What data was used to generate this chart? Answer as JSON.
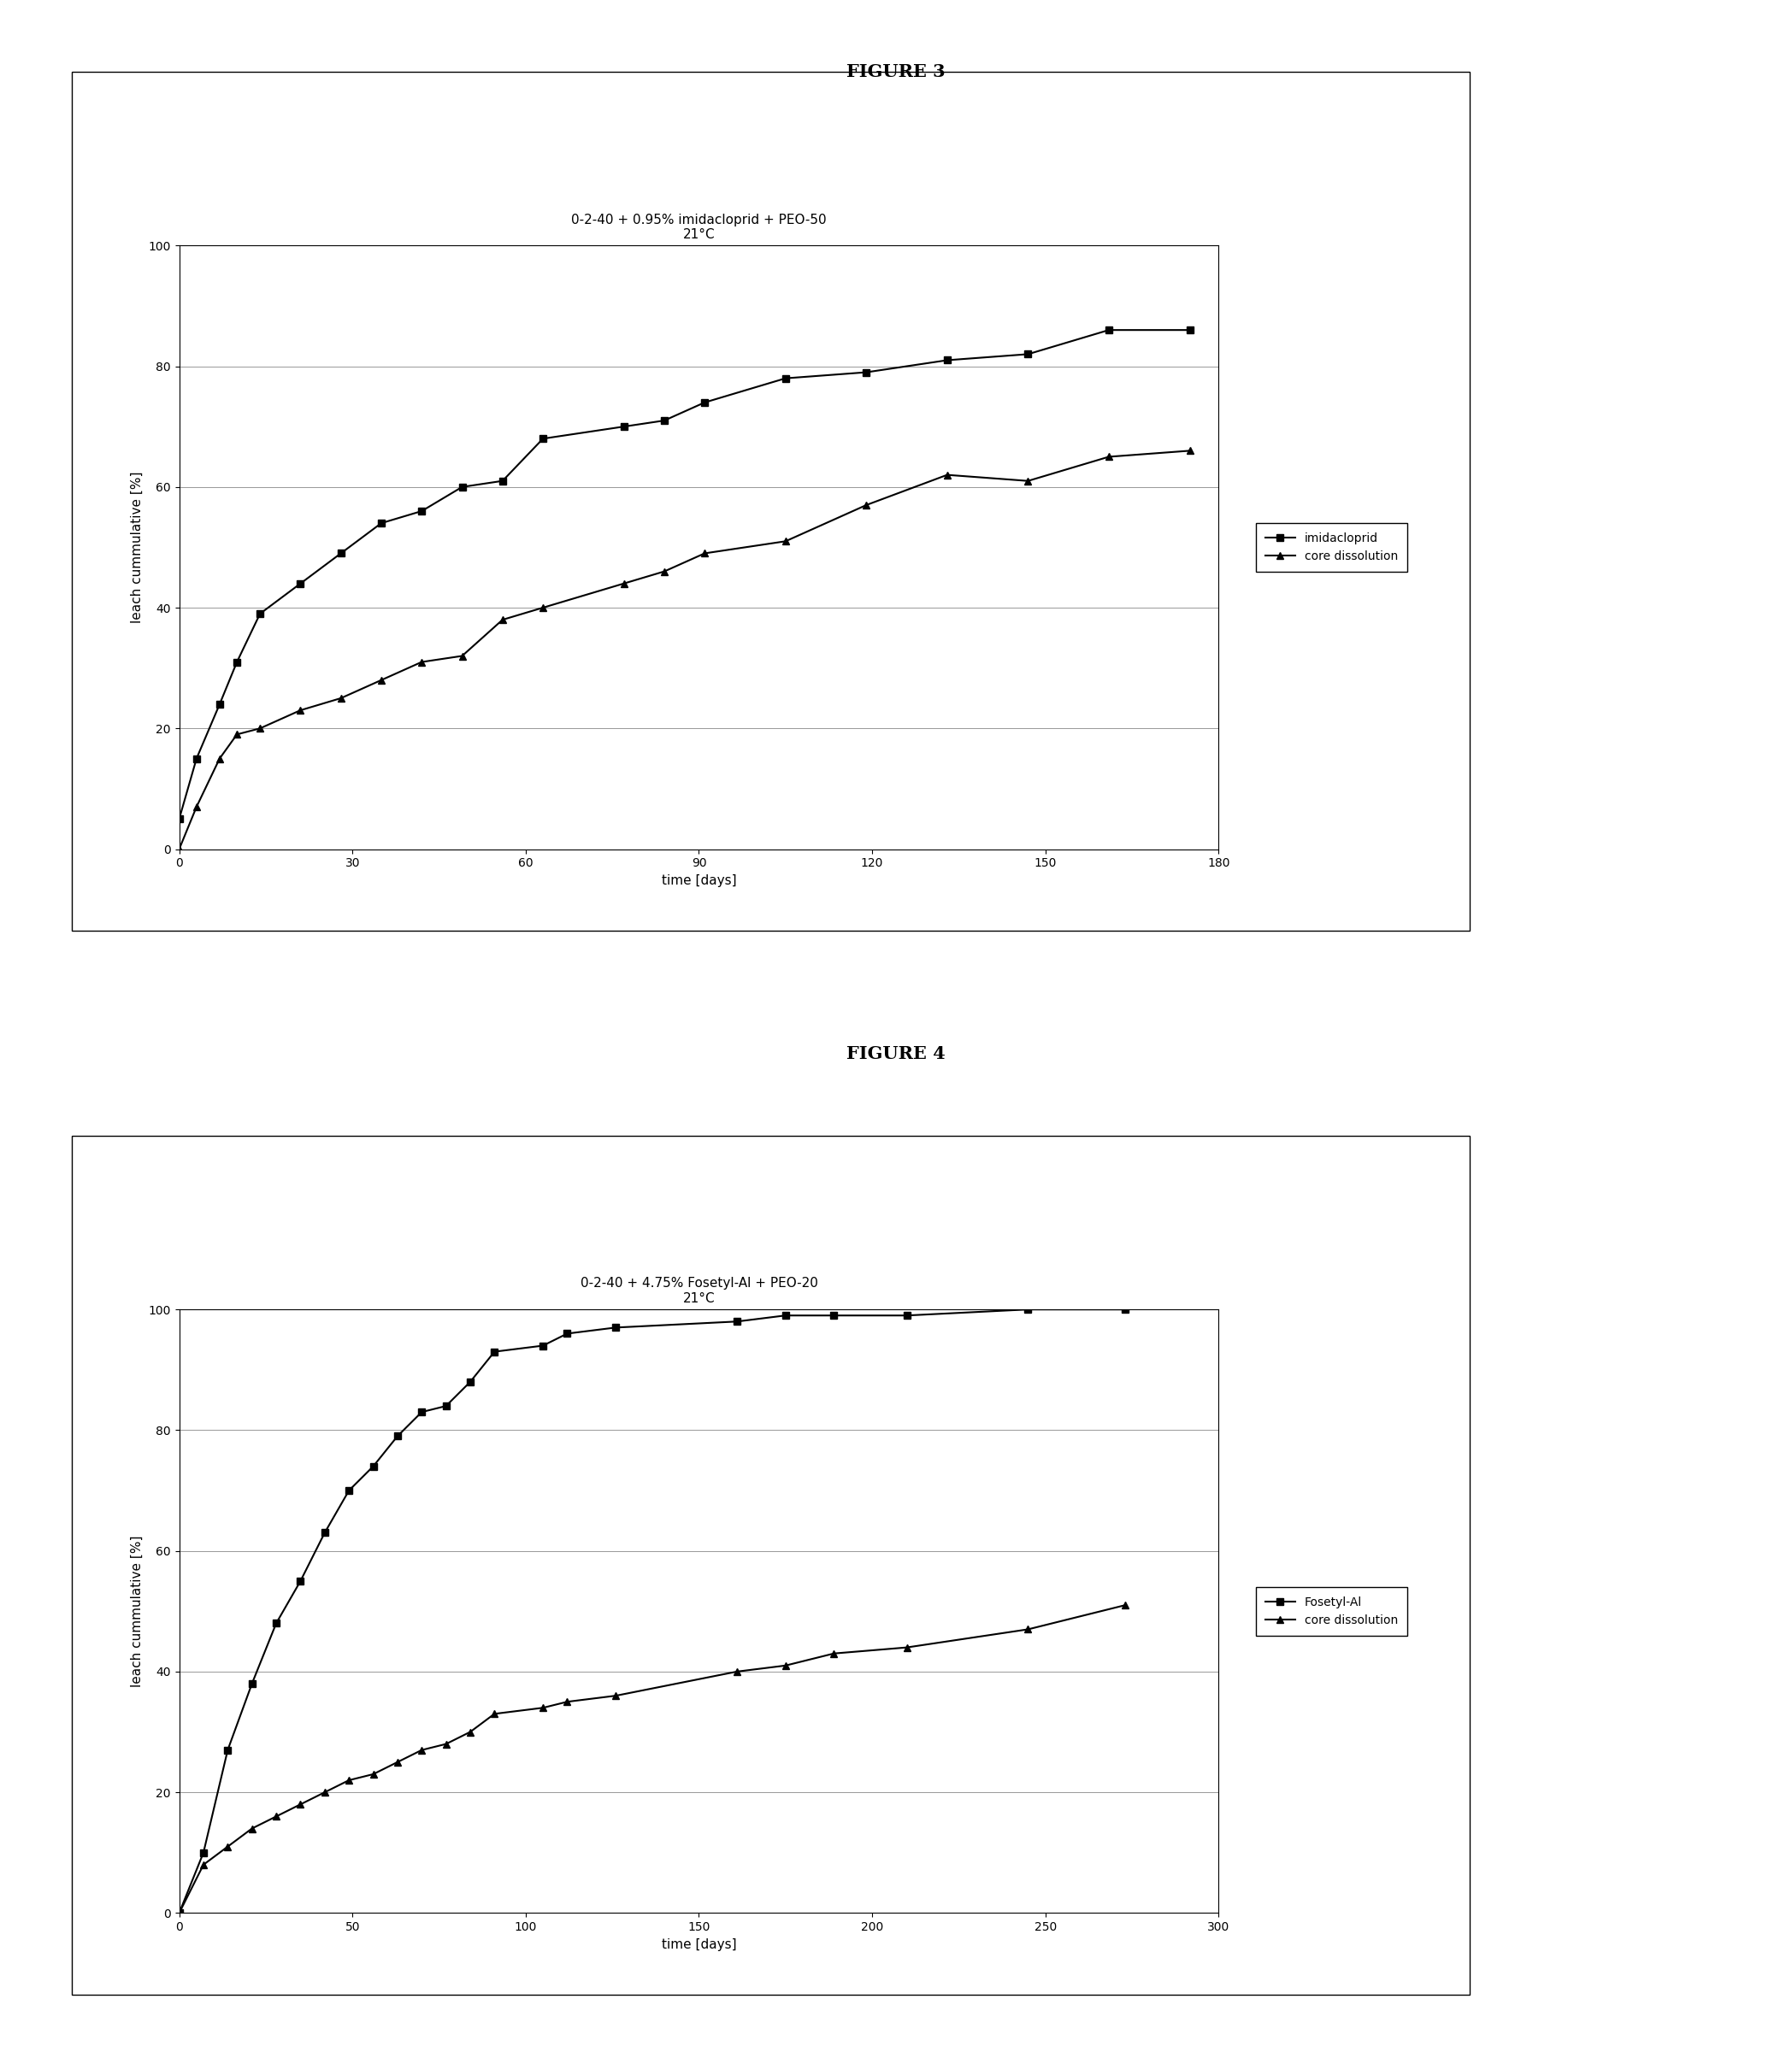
{
  "fig3": {
    "title_line1": "0-2-40 + 0.95% imidacloprid + PEO-50",
    "title_line2": "21°C",
    "xlabel": "time [days]",
    "ylabel": "leach cummulative [%]",
    "xlim": [
      0,
      180
    ],
    "ylim": [
      0,
      100
    ],
    "xticks": [
      0,
      30,
      60,
      90,
      120,
      150,
      180
    ],
    "yticks": [
      0,
      20,
      40,
      60,
      80,
      100
    ],
    "series1_label": "imidacloprid",
    "series1_x": [
      0,
      3,
      7,
      10,
      14,
      21,
      28,
      35,
      42,
      49,
      56,
      63,
      77,
      84,
      91,
      105,
      119,
      133,
      147,
      161,
      175
    ],
    "series1_y": [
      5,
      15,
      24,
      31,
      39,
      44,
      49,
      54,
      56,
      60,
      61,
      68,
      70,
      71,
      74,
      78,
      79,
      81,
      82,
      86,
      86
    ],
    "series2_label": "core dissolution",
    "series2_x": [
      0,
      3,
      7,
      10,
      14,
      21,
      28,
      35,
      42,
      49,
      56,
      63,
      77,
      84,
      91,
      105,
      119,
      133,
      147,
      161,
      175
    ],
    "series2_y": [
      0,
      7,
      15,
      19,
      20,
      23,
      25,
      28,
      31,
      32,
      38,
      40,
      44,
      46,
      49,
      51,
      57,
      62,
      61,
      65,
      66
    ],
    "figure_label": "FIGURE 3"
  },
  "fig4": {
    "title_line1": "0-2-40 + 4.75% Fosetyl-Al + PEO-20",
    "title_line2": "21°C",
    "xlabel": "time [days]",
    "ylabel": "leach cummulative [%]",
    "xlim": [
      0,
      300
    ],
    "ylim": [
      0,
      100
    ],
    "xticks": [
      0,
      50,
      100,
      150,
      200,
      250,
      300
    ],
    "yticks": [
      0,
      20,
      40,
      60,
      80,
      100
    ],
    "series1_label": "Fosetyl-Al",
    "series1_x": [
      0,
      7,
      14,
      21,
      28,
      35,
      42,
      49,
      56,
      63,
      70,
      77,
      84,
      91,
      105,
      112,
      126,
      161,
      175,
      189,
      210,
      245,
      273
    ],
    "series1_y": [
      0,
      10,
      27,
      38,
      48,
      55,
      63,
      70,
      74,
      79,
      83,
      84,
      88,
      93,
      94,
      96,
      97,
      98,
      99,
      99,
      99,
      100,
      100
    ],
    "series2_label": "core dissolution",
    "series2_x": [
      0,
      7,
      14,
      21,
      28,
      35,
      42,
      49,
      56,
      63,
      70,
      77,
      84,
      91,
      105,
      112,
      126,
      161,
      175,
      189,
      210,
      245,
      273
    ],
    "series2_y": [
      0,
      8,
      11,
      14,
      16,
      18,
      20,
      22,
      23,
      25,
      27,
      28,
      30,
      33,
      34,
      35,
      36,
      40,
      41,
      43,
      44,
      47,
      51
    ],
    "figure_label": "FIGURE 4"
  },
  "background_color": "#ffffff",
  "line_color": "#000000",
  "marker_square": "s",
  "marker_triangle": "^",
  "marker_size": 6,
  "line_width": 1.5,
  "font_size_title": 11,
  "font_size_axis_label": 11,
  "font_size_tick": 10,
  "font_size_legend": 10,
  "font_size_figure_label": 15
}
